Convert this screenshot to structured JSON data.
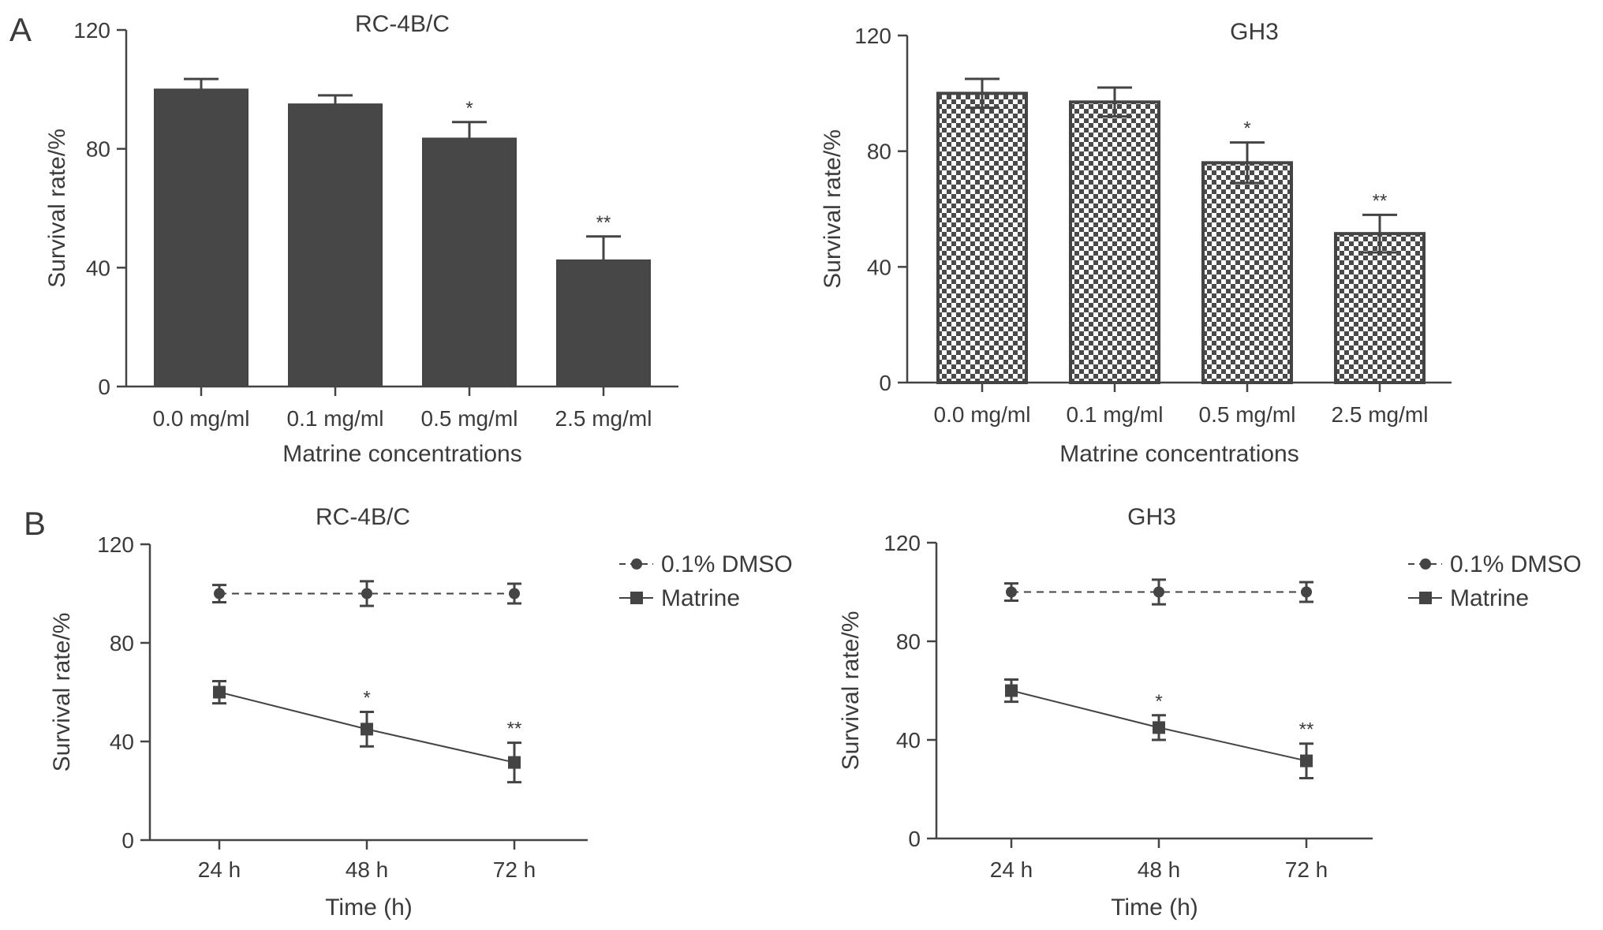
{
  "colors": {
    "ink": "#444444",
    "bar_fill": "#474747",
    "axis": "#444444",
    "check_light": "#ffffff",
    "check_dark": "#4a4a4a"
  },
  "panels": [
    {
      "letter": "A"
    },
    {
      "letter": "B"
    }
  ],
  "chart_data": [
    {
      "type": "bar",
      "panel": "A",
      "title": "RC-4B/C",
      "xlabel": "Matrine concentrations",
      "ylabel": "Survival rate/%",
      "ylim": [
        0,
        120
      ],
      "yticks": [
        "0",
        "40",
        "80",
        "120"
      ],
      "categories": [
        "0.0 mg/ml",
        "0.1 mg/ml",
        "0.5 mg/ml",
        "2.5 mg/ml"
      ],
      "values": [
        100,
        95,
        83.5,
        42.5
      ],
      "errors": [
        3.5,
        3,
        5.5,
        8
      ],
      "significance": [
        "",
        "",
        "*",
        "**"
      ],
      "bar_style": "solid",
      "grid": false
    },
    {
      "type": "bar",
      "panel": "A",
      "title": "GH3",
      "xlabel": "Matrine concentrations",
      "ylabel": "Survival rate/%",
      "ylim": [
        0,
        120
      ],
      "yticks": [
        "0",
        "40",
        "80",
        "120"
      ],
      "categories": [
        "0.0 mg/ml",
        "0.1 mg/ml",
        "0.5 mg/ml",
        "2.5 mg/ml"
      ],
      "values": [
        100,
        97,
        76,
        51.5
      ],
      "errors": [
        5,
        5,
        7,
        6.5
      ],
      "significance": [
        "",
        "",
        "*",
        "**"
      ],
      "bar_style": "checkered",
      "grid": false
    },
    {
      "type": "line",
      "panel": "B",
      "title": "RC-4B/C",
      "xlabel": "Time (h)",
      "ylabel": "Survival rate/%",
      "ylim": [
        0,
        120
      ],
      "yticks": [
        "0",
        "40",
        "80",
        "120"
      ],
      "x": [
        "24 h",
        "48 h",
        "72 h"
      ],
      "series": [
        {
          "name": "0.1% DMSO",
          "values": [
            100,
            100,
            100
          ],
          "errors": [
            3.5,
            5,
            4
          ],
          "marker": "circle",
          "dash": true,
          "significance": [
            "",
            "",
            ""
          ]
        },
        {
          "name": "Matrine",
          "values": [
            60,
            45,
            31.5
          ],
          "errors": [
            4.5,
            7,
            8
          ],
          "marker": "square",
          "dash": false,
          "significance": [
            "",
            "*",
            "**"
          ]
        }
      ],
      "legend_position": "top-right",
      "grid": false
    },
    {
      "type": "line",
      "panel": "B",
      "title": "GH3",
      "xlabel": "Time (h)",
      "ylabel": "Survival rate/%",
      "ylim": [
        0,
        120
      ],
      "yticks": [
        "0",
        "40",
        "80",
        "120"
      ],
      "x": [
        "24 h",
        "48 h",
        "72 h"
      ],
      "series": [
        {
          "name": "0.1% DMSO",
          "values": [
            100,
            100,
            100
          ],
          "errors": [
            3.5,
            5,
            4
          ],
          "marker": "circle",
          "dash": true,
          "significance": [
            "",
            "",
            ""
          ]
        },
        {
          "name": "Matrine",
          "values": [
            60,
            45,
            31.5
          ],
          "errors": [
            4.5,
            5,
            7
          ],
          "marker": "square",
          "dash": false,
          "significance": [
            "",
            "*",
            "**"
          ]
        }
      ],
      "legend_position": "top-right",
      "grid": false
    }
  ]
}
